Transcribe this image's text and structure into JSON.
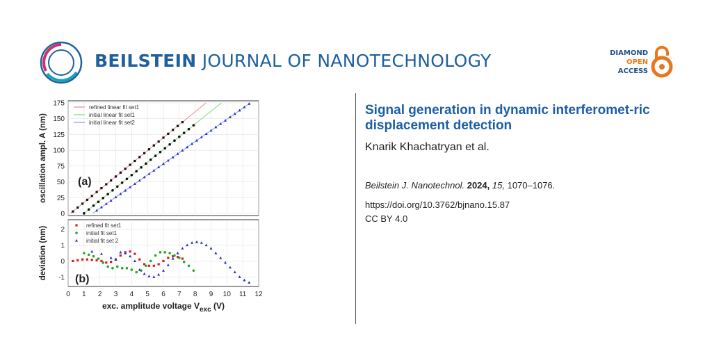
{
  "header": {
    "journal_bold": "BEILSTEIN",
    "journal_rest": "JOURNAL OF NANOTECHNOLOGY",
    "oa_line1": "DIAMOND",
    "oa_line2": "OPEN",
    "oa_line3": "ACCESS",
    "colors": {
      "brand_blue": "#1f5f9e",
      "oa_orange": "#e8781e"
    }
  },
  "article": {
    "title": "Signal generation in dynamic interferomet-ric displacement detection",
    "authors": "Knarik Khachatryan et al.",
    "citation_journal": "Beilstein J. Nanotechnol.",
    "citation_year": "2024,",
    "citation_volume": "15,",
    "citation_pages": "1070–1076.",
    "doi": "https://doi.org/10.3762/bjnano.15.87",
    "license": "CC BY 4.0"
  },
  "chart_data": [
    {
      "type": "scatter",
      "panel_label": "(a)",
      "ylabel": "oscillation ampl.  A (nm)",
      "xlim": [
        0,
        12
      ],
      "ylim": [
        0,
        175
      ],
      "yticks": [
        "0",
        "25",
        "50",
        "75",
        "100",
        "125",
        "150",
        "175"
      ],
      "legend": [
        "refined linear fit set1",
        "initial linear fit set1",
        "initial linear fit set2"
      ],
      "series": [
        {
          "name": "refined fit set1",
          "color": "#d62020",
          "marker": "square",
          "slope": 20.5,
          "intercept": -3,
          "x_range": [
            0.3,
            7.2
          ],
          "fit_x": [
            0,
            9.0
          ]
        },
        {
          "name": "initial fit set1",
          "color": "#22aa22",
          "marker": "circle",
          "slope": 20.2,
          "intercept": -20,
          "x_range": [
            1.0,
            8.0
          ],
          "fit_x": [
            1.0,
            10.0
          ]
        },
        {
          "name": "initial fit set 2",
          "color": "#2233cc",
          "marker": "triangle",
          "slope": 17.6,
          "intercept": -27,
          "x_range": [
            1.5,
            12.0
          ],
          "fit_x": [
            1.5,
            12.0
          ]
        }
      ]
    },
    {
      "type": "scatter",
      "panel_label": "(b)",
      "ylabel": "deviation (nm)",
      "xlabel": "exc. amplitude voltage V",
      "xlabel_sub": "exc",
      "xlabel_unit": " (V)",
      "xlim": [
        0,
        12
      ],
      "ylim": [
        -1.6,
        2.6
      ],
      "xticks": [
        "0",
        "1",
        "2",
        "3",
        "4",
        "5",
        "6",
        "7",
        "8",
        "9",
        "10",
        "11",
        "12"
      ],
      "yticks": [
        "-1",
        "0",
        "1",
        "2"
      ],
      "legend": [
        "refined fit set1",
        "initial fit set1",
        "initial fit set 2"
      ],
      "series": [
        {
          "name": "refined fit set1",
          "color": "#d62020",
          "marker": "square",
          "x": [
            0.3,
            0.6,
            0.9,
            1.2,
            1.5,
            1.8,
            2.1,
            2.4,
            2.7,
            3.0,
            3.3,
            3.6,
            3.9,
            4.2,
            4.5,
            4.8,
            5.1,
            5.4,
            5.7,
            6.0,
            6.3,
            6.6,
            6.9,
            7.2
          ],
          "y": [
            0.0,
            0.05,
            0.1,
            0.1,
            0.08,
            0.05,
            0.0,
            -0.1,
            -0.05,
            0.1,
            0.35,
            0.55,
            0.6,
            0.45,
            0.1,
            -0.2,
            -0.3,
            -0.3,
            -0.2,
            0.0,
            0.2,
            0.3,
            0.25,
            0.15
          ]
        },
        {
          "name": "initial fit set1",
          "color": "#22aa22",
          "marker": "circle",
          "x": [
            1.0,
            1.3,
            1.6,
            1.9,
            2.2,
            2.5,
            2.8,
            3.1,
            3.4,
            3.7,
            4.0,
            4.3,
            4.6,
            4.9,
            5.2,
            5.5,
            5.8,
            6.1,
            6.4,
            6.7,
            7.0,
            7.3,
            7.6,
            7.9
          ],
          "y": [
            0.5,
            0.4,
            0.3,
            0.15,
            -0.1,
            -0.35,
            -0.45,
            -0.35,
            -0.45,
            -0.45,
            -0.55,
            -0.7,
            -0.6,
            -0.3,
            0.0,
            0.35,
            0.55,
            0.55,
            0.5,
            0.35,
            0.2,
            -0.05,
            -0.3,
            -0.6
          ]
        },
        {
          "name": "initial fit set 2",
          "color": "#2233cc",
          "marker": "triangle",
          "x": [
            1.5,
            2.1,
            2.7,
            3.0,
            3.3,
            3.6,
            3.9,
            4.2,
            4.5,
            4.8,
            5.1,
            5.4,
            5.7,
            6.0,
            6.3,
            6.6,
            6.9,
            7.2,
            7.5,
            7.8,
            8.1,
            8.4,
            8.7,
            9.0,
            9.3,
            9.6,
            9.9,
            10.2,
            10.5,
            10.8,
            11.1,
            11.4
          ],
          "y": [
            0.6,
            0.45,
            0.2,
            0.1,
            0.55,
            0.5,
            0.3,
            0.0,
            -0.55,
            -0.8,
            -0.95,
            -1.0,
            -0.85,
            -0.6,
            -0.25,
            0.15,
            0.5,
            0.8,
            1.0,
            1.15,
            1.2,
            1.15,
            1.0,
            0.8,
            0.5,
            0.2,
            -0.1,
            -0.4,
            -0.7,
            -1.0,
            -1.2,
            -1.35
          ]
        }
      ]
    }
  ]
}
